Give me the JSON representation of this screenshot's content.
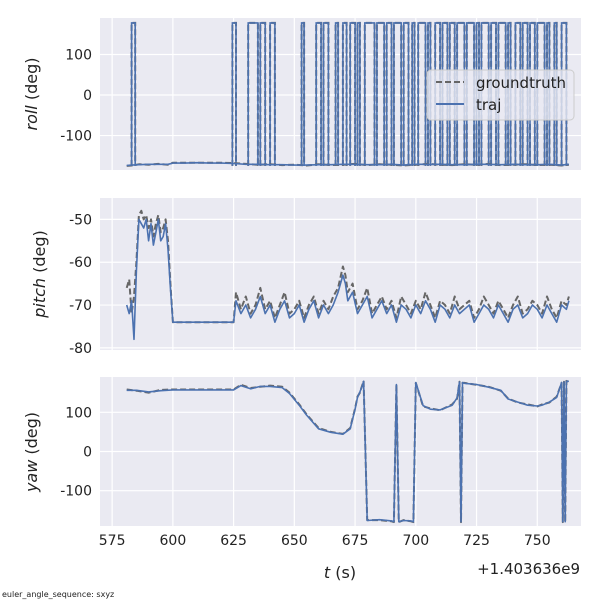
{
  "figure": {
    "footnote": "euler_angle_sequence: sxyz",
    "x_offset_label": "+1.403636e9",
    "xlabel_italic": "t",
    "xlabel_unit": " (s)"
  },
  "colors": {
    "background": "#EAEAF2",
    "grid": "#FFFFFF",
    "groundtruth": "#666666",
    "traj": "#4C72B0"
  },
  "chart_data": [
    {
      "type": "line",
      "panel": "roll",
      "ylabel_italic": "roll",
      "ylabel_unit": " (deg)",
      "xlim": [
        570,
        768
      ],
      "ylim": [
        -185,
        190
      ],
      "xticks": [
        575,
        600,
        625,
        650,
        675,
        700,
        725,
        750
      ],
      "yticks": [
        -100,
        0,
        100
      ],
      "grid": true,
      "legend": {
        "placement": "right",
        "entries": [
          "groundtruth",
          "traj"
        ]
      },
      "flip_segments": [
        [
          583.0,
          584.5
        ],
        [
          624.5,
          626.0
        ],
        [
          631.0,
          635.0
        ],
        [
          636.0,
          638.0
        ],
        [
          640.0,
          642.0
        ],
        [
          653.0,
          654.0
        ],
        [
          659.0,
          661.0
        ],
        [
          662.0,
          664.0
        ],
        [
          667.0,
          668.0
        ],
        [
          670.0,
          671.5
        ],
        [
          673.0,
          675.0
        ],
        [
          676.0,
          677.0
        ],
        [
          679.0,
          683.0
        ],
        [
          684.0,
          687.0
        ],
        [
          688.0,
          690.0
        ],
        [
          691.0,
          694.0
        ],
        [
          695.0,
          697.0
        ],
        [
          698.5,
          699.5
        ],
        [
          701.0,
          704.0
        ],
        [
          705.0,
          706.0
        ],
        [
          708.0,
          710.0
        ],
        [
          711.0,
          713.0
        ],
        [
          714.0,
          716.0
        ],
        [
          717.0,
          720.0
        ],
        [
          721.0,
          724.0
        ],
        [
          725.0,
          726.0
        ],
        [
          727.0,
          730.0
        ],
        [
          731.0,
          733.0
        ],
        [
          734.0,
          737.0
        ],
        [
          738.0,
          739.0
        ],
        [
          741.0,
          743.0
        ],
        [
          744.0,
          746.0
        ],
        [
          747.0,
          749.0
        ],
        [
          750.0,
          753.0
        ],
        [
          754.0,
          755.0
        ],
        [
          757.0,
          758.0
        ],
        [
          760.0,
          762.0
        ]
      ],
      "series": [
        {
          "name": "groundtruth",
          "style": "dashed",
          "x": [
            581,
            583,
            586,
            590,
            594,
            598,
            600,
            605,
            610,
            615,
            620,
            625,
            630,
            635,
            640,
            645,
            650,
            655,
            660,
            665,
            670,
            675,
            680,
            685,
            690,
            695,
            700,
            705,
            710,
            715,
            720,
            725,
            730,
            735,
            740,
            745,
            750,
            755,
            760,
            763
          ],
          "y": [
            -175,
            -174,
            -171,
            -172,
            -170,
            -172,
            -167,
            -167,
            -167,
            -167,
            -167,
            -168,
            -170,
            -172,
            -171,
            -173,
            -172,
            -174,
            -171,
            -173,
            -172,
            -170,
            -173,
            -171,
            -172,
            -174,
            -172,
            -170,
            -172,
            -173,
            -171,
            -172,
            -170,
            -173,
            -172,
            -171,
            -173,
            -172,
            -174,
            -172
          ]
        },
        {
          "name": "traj",
          "style": "solid",
          "x": [
            581,
            583,
            586,
            590,
            594,
            598,
            600,
            605,
            610,
            615,
            620,
            625,
            630,
            635,
            640,
            645,
            650,
            655,
            660,
            665,
            670,
            675,
            680,
            685,
            690,
            695,
            700,
            705,
            710,
            715,
            720,
            725,
            730,
            735,
            740,
            745,
            750,
            755,
            760,
            763
          ],
          "y": [
            -174,
            -173,
            -172,
            -171,
            -171,
            -171,
            -168,
            -168,
            -167,
            -168,
            -168,
            -169,
            -171,
            -171,
            -172,
            -172,
            -173,
            -173,
            -172,
            -172,
            -171,
            -171,
            -172,
            -172,
            -171,
            -173,
            -171,
            -171,
            -171,
            -172,
            -172,
            -171,
            -171,
            -172,
            -171,
            -172,
            -172,
            -171,
            -173,
            -171
          ]
        }
      ]
    },
    {
      "type": "line",
      "panel": "pitch",
      "ylabel_italic": "pitch",
      "ylabel_unit": " (deg)",
      "xlim": [
        570,
        768
      ],
      "ylim": [
        -80.5,
        -45
      ],
      "xticks": [
        575,
        600,
        625,
        650,
        675,
        700,
        725,
        750
      ],
      "yticks": [
        -80,
        -70,
        -60,
        -50
      ],
      "grid": true,
      "series": [
        {
          "name": "groundtruth",
          "style": "dashed",
          "x": [
            581,
            582,
            583,
            584,
            585,
            586,
            587,
            588,
            589,
            590,
            591,
            592,
            593,
            594,
            595,
            596,
            597,
            598,
            599,
            600,
            605,
            610,
            615,
            620,
            625,
            626,
            628,
            630,
            632,
            634,
            636,
            638,
            640,
            642,
            644,
            646,
            648,
            650,
            652,
            654,
            656,
            658,
            660,
            662,
            664,
            666,
            668,
            670,
            671,
            672,
            674,
            676,
            678,
            680,
            682,
            684,
            686,
            688,
            690,
            692,
            694,
            696,
            698,
            700,
            702,
            704,
            706,
            708,
            710,
            712,
            714,
            716,
            718,
            720,
            722,
            724,
            726,
            728,
            730,
            732,
            734,
            736,
            738,
            740,
            742,
            744,
            746,
            748,
            750,
            752,
            754,
            756,
            758,
            760,
            762,
            763
          ],
          "y": [
            -66,
            -64,
            -72,
            -68,
            -60,
            -49,
            -48,
            -50,
            -49,
            -52,
            -50,
            -54,
            -51,
            -49,
            -53,
            -52,
            -50,
            -55,
            -65,
            -74,
            -74,
            -74,
            -74,
            -74,
            -74,
            -67,
            -71,
            -68,
            -72,
            -70,
            -66,
            -71,
            -69,
            -73,
            -70,
            -67,
            -72,
            -71,
            -69,
            -73,
            -70,
            -68,
            -72,
            -69,
            -71,
            -68,
            -66,
            -61,
            -63,
            -67,
            -65,
            -71,
            -69,
            -66,
            -72,
            -70,
            -68,
            -71,
            -69,
            -73,
            -68,
            -70,
            -72,
            -69,
            -71,
            -67,
            -70,
            -73,
            -69,
            -70,
            -72,
            -68,
            -71,
            -70,
            -69,
            -73,
            -71,
            -68,
            -70,
            -72,
            -69,
            -71,
            -73,
            -70,
            -68,
            -72,
            -71,
            -69,
            -70,
            -72,
            -68,
            -71,
            -73,
            -69,
            -70,
            -68
          ]
        },
        {
          "name": "traj",
          "style": "solid",
          "x": [
            581,
            582,
            583,
            584,
            585,
            586,
            587,
            588,
            589,
            590,
            591,
            592,
            593,
            594,
            595,
            596,
            597,
            598,
            599,
            600,
            605,
            610,
            615,
            620,
            625,
            626,
            628,
            630,
            632,
            634,
            636,
            638,
            640,
            642,
            644,
            646,
            648,
            650,
            652,
            654,
            656,
            658,
            660,
            662,
            664,
            666,
            668,
            670,
            671,
            672,
            674,
            676,
            678,
            680,
            682,
            684,
            686,
            688,
            690,
            692,
            694,
            696,
            698,
            700,
            702,
            704,
            706,
            708,
            710,
            712,
            714,
            716,
            718,
            720,
            722,
            724,
            726,
            728,
            730,
            732,
            734,
            736,
            738,
            740,
            742,
            744,
            746,
            748,
            750,
            752,
            754,
            756,
            758,
            760,
            762,
            763
          ],
          "y": [
            -70,
            -72,
            -69,
            -78,
            -62,
            -50,
            -51,
            -52,
            -50,
            -55,
            -51,
            -56,
            -53,
            -50,
            -55,
            -54,
            -51,
            -57,
            -66,
            -74,
            -74,
            -74,
            -74,
            -74,
            -74,
            -69,
            -72,
            -70,
            -73,
            -71,
            -68,
            -72,
            -70,
            -74,
            -71,
            -69,
            -73,
            -72,
            -70,
            -74,
            -71,
            -69,
            -73,
            -70,
            -72,
            -70,
            -67,
            -63,
            -65,
            -69,
            -67,
            -72,
            -70,
            -68,
            -73,
            -71,
            -69,
            -72,
            -70,
            -74,
            -70,
            -71,
            -73,
            -70,
            -72,
            -69,
            -71,
            -74,
            -70,
            -71,
            -73,
            -70,
            -72,
            -71,
            -70,
            -74,
            -72,
            -70,
            -71,
            -73,
            -70,
            -72,
            -74,
            -71,
            -70,
            -73,
            -72,
            -70,
            -71,
            -73,
            -70,
            -72,
            -74,
            -70,
            -71,
            -69
          ]
        }
      ]
    },
    {
      "type": "line",
      "panel": "yaw",
      "ylabel_italic": "yaw",
      "ylabel_unit": " (deg)",
      "xlim": [
        570,
        768
      ],
      "ylim": [
        -190,
        190
      ],
      "xticks": [
        575,
        600,
        625,
        650,
        675,
        700,
        725,
        750
      ],
      "yticks": [
        -100,
        0,
        100
      ],
      "grid": true,
      "series": [
        {
          "name": "groundtruth",
          "style": "dashed",
          "x": [
            581,
            585,
            590,
            595,
            600,
            605,
            610,
            615,
            620,
            625,
            628,
            632,
            636,
            640,
            645,
            648,
            652,
            655,
            660,
            665,
            670,
            673,
            675,
            676,
            677,
            678,
            678.5,
            680,
            685,
            690,
            691,
            692,
            693,
            695,
            698,
            699,
            700,
            703,
            706,
            710,
            715,
            717,
            718,
            718.6,
            719.2,
            720,
            725,
            730,
            735,
            738,
            742,
            746,
            750,
            752,
            755,
            758,
            760,
            760.5,
            761,
            761.5,
            762,
            763
          ],
          "y": [
            158,
            155,
            150,
            157,
            158,
            158,
            158,
            158,
            158,
            158,
            170,
            162,
            165,
            168,
            165,
            150,
            120,
            95,
            60,
            50,
            45,
            60,
            110,
            140,
            150,
            170,
            180,
            -175,
            -175,
            -178,
            -180,
            170,
            -180,
            -175,
            -178,
            -180,
            175,
            115,
            110,
            105,
            120,
            135,
            178,
            -180,
            175,
            175,
            170,
            165,
            155,
            135,
            125,
            120,
            115,
            120,
            125,
            140,
            175,
            -180,
            178,
            -180,
            180,
            178
          ]
        },
        {
          "name": "traj",
          "style": "solid",
          "x": [
            581,
            585,
            590,
            595,
            600,
            605,
            610,
            615,
            620,
            625,
            628,
            632,
            636,
            640,
            645,
            648,
            652,
            655,
            660,
            665,
            670,
            673,
            675,
            676,
            677,
            678,
            678.5,
            680,
            685,
            690,
            691,
            692,
            693,
            695,
            698,
            699,
            700,
            703,
            706,
            710,
            715,
            717,
            718,
            718.6,
            719.2,
            720,
            725,
            730,
            735,
            738,
            742,
            746,
            750,
            752,
            755,
            758,
            760,
            760.5,
            761,
            761.5,
            762,
            763
          ],
          "y": [
            156,
            156,
            152,
            155,
            157,
            157,
            157,
            157,
            157,
            157,
            168,
            160,
            166,
            166,
            163,
            148,
            118,
            93,
            58,
            49,
            44,
            58,
            108,
            138,
            152,
            168,
            179,
            -176,
            -174,
            -177,
            -179,
            171,
            -179,
            -176,
            -177,
            -179,
            176,
            117,
            108,
            106,
            118,
            137,
            177,
            -179,
            176,
            174,
            171,
            164,
            156,
            134,
            126,
            118,
            116,
            118,
            126,
            138,
            176,
            -179,
            177,
            -179,
            179,
            179
          ]
        }
      ]
    }
  ]
}
